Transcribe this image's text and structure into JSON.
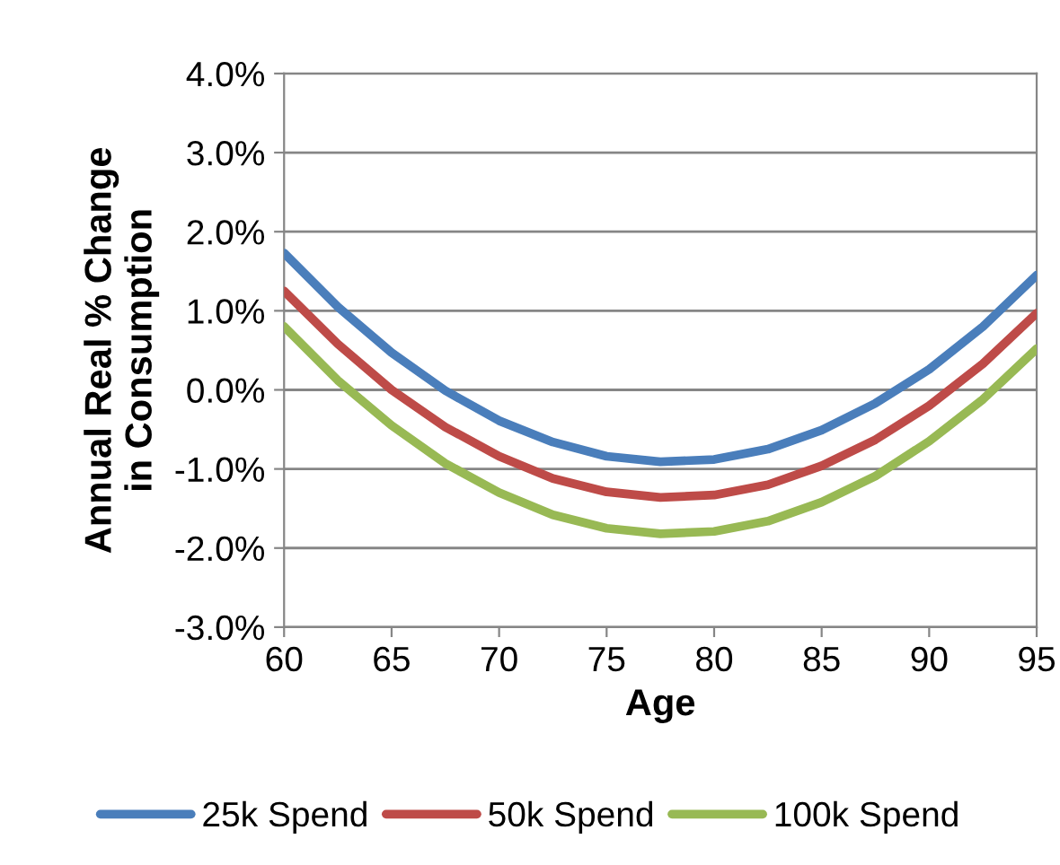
{
  "chart_data": {
    "type": "line",
    "xlabel": "Age",
    "ylabel": "Annual Real % Change\nin Consumption",
    "x": [
      60,
      62.5,
      65,
      67.5,
      70,
      72.5,
      75,
      77.5,
      80,
      82.5,
      85,
      87.5,
      90,
      92.5,
      95
    ],
    "series": [
      {
        "name": "25k Spend",
        "color": "#4a7ebb",
        "values": [
          1.73,
          1.05,
          0.47,
          -0.01,
          -0.39,
          -0.66,
          -0.84,
          -0.91,
          -0.88,
          -0.75,
          -0.51,
          -0.17,
          0.26,
          0.8,
          1.45
        ]
      },
      {
        "name": "50k Spend",
        "color": "#be4b48",
        "values": [
          1.25,
          0.58,
          0.0,
          -0.47,
          -0.84,
          -1.12,
          -1.29,
          -1.36,
          -1.33,
          -1.2,
          -0.96,
          -0.63,
          -0.2,
          0.33,
          0.97
        ]
      },
      {
        "name": "100k Spend",
        "color": "#98b954",
        "values": [
          0.8,
          0.12,
          -0.45,
          -0.93,
          -1.3,
          -1.58,
          -1.75,
          -1.82,
          -1.79,
          -1.66,
          -1.42,
          -1.09,
          -0.65,
          -0.12,
          0.52
        ]
      }
    ],
    "xlim": [
      60,
      95
    ],
    "xticks": [
      60,
      65,
      70,
      75,
      80,
      85,
      90,
      95
    ],
    "ylim": [
      -3,
      4
    ],
    "yticks": [
      {
        "value": -3,
        "label": "-3.0%"
      },
      {
        "value": -2,
        "label": "-2.0%"
      },
      {
        "value": -1,
        "label": "-1.0%"
      },
      {
        "value": 0,
        "label": "0.0%"
      },
      {
        "value": 1,
        "label": "1.0%"
      },
      {
        "value": 2,
        "label": "2.0%"
      },
      {
        "value": 3,
        "label": "3.0%"
      },
      {
        "value": 4,
        "label": "4.0%"
      }
    ],
    "grid": "y",
    "legend": "bottom",
    "marker": "none",
    "line_style": "solid"
  }
}
